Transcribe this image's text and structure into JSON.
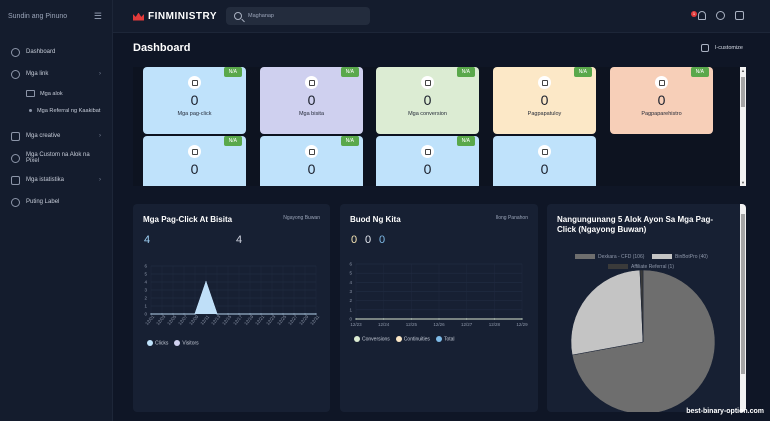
{
  "sidebar": {
    "user": "Sundin ang Pinuno",
    "items": [
      {
        "label": "Dashboard"
      },
      {
        "label": "Mga link"
      },
      {
        "label": "Mga alok"
      },
      {
        "label": "Mga Referral ng Kaakibat"
      },
      {
        "label": "Mga creative"
      },
      {
        "label": "Mga Custom na Alok na Pixel"
      },
      {
        "label": "Mga istatistika"
      },
      {
        "label": "Puting Label"
      }
    ]
  },
  "header": {
    "brand": "FINMINISTRY",
    "search_placeholder": "Maghanap",
    "notification_count": "1"
  },
  "page": {
    "title": "Dashboard",
    "customize_label": "I-customize"
  },
  "stat_cards": [
    {
      "label": "Mga pag-click",
      "value": "0",
      "badge": "N/A",
      "color": "#bfe2fb"
    },
    {
      "label": "Mga bisita",
      "value": "0",
      "badge": "N/A",
      "color": "#cfd0ef"
    },
    {
      "label": "Mga conversion",
      "value": "0",
      "badge": "N/A",
      "color": "#dcecd3"
    },
    {
      "label": "Pagpapatuloy",
      "value": "0",
      "badge": "N/A",
      "color": "#fce8c7"
    },
    {
      "label": "Pagpaparehistro",
      "value": "0",
      "badge": "N/A",
      "color": "#f7cfb8"
    },
    {
      "label": "",
      "value": "0",
      "badge": "N/A",
      "color": "#bfe2fb"
    },
    {
      "label": "",
      "value": "0",
      "badge": "N/A",
      "color": "#bfe2fb"
    },
    {
      "label": "",
      "value": "0",
      "badge": "N/A",
      "color": "#bfe2fb"
    },
    {
      "label": "",
      "value": "0",
      "badge": "",
      "color": "#bfe2fb"
    }
  ],
  "clicks_panel": {
    "title": "Mga Pag-Click At Bisita",
    "period": "Ngayong Buwan",
    "clicks_total": "4",
    "visitors_total": "4",
    "legend": [
      "Clicks",
      "Visitors"
    ]
  },
  "income_panel": {
    "title": "Buod Ng Kita",
    "period": "Ilong Panahon",
    "totals": [
      "0",
      "0",
      "0"
    ],
    "legend": [
      "Conversions",
      "Continuities",
      "Total"
    ]
  },
  "top_offers_panel": {
    "title": "Nangungunang 5 Alok Ayon Sa Mga Pag-Click (Ngayong Buwan)",
    "legend": [
      "Dexkara - CFD (106)",
      "BinBotPro (40)",
      "Affiliate Referral (1)"
    ]
  },
  "watermark": "best-binary-option.com",
  "chart_data": [
    {
      "type": "line",
      "title": "Mga Pag-Click At Bisita",
      "x": [
        "12/01",
        "12/03",
        "12/05",
        "12/07",
        "12/09",
        "12/11",
        "12/13",
        "12/15",
        "12/17",
        "12/19",
        "12/21",
        "12/23",
        "12/25",
        "12/27",
        "12/29",
        "12/31"
      ],
      "ylim": [
        0,
        6
      ],
      "yticks": [
        "0",
        "1",
        "2",
        "3",
        "4",
        "5",
        "6"
      ],
      "series": [
        {
          "name": "Clicks",
          "values": [
            0,
            0,
            0,
            0,
            0,
            4,
            0,
            0,
            0,
            0,
            0,
            0,
            0,
            0,
            0,
            0
          ],
          "color": "#bfe2fb"
        },
        {
          "name": "Visitors",
          "values": [
            0,
            0,
            0,
            0,
            0,
            4,
            0,
            0,
            0,
            0,
            0,
            0,
            0,
            0,
            0,
            0
          ],
          "color": "#cfd0ef"
        }
      ]
    },
    {
      "type": "line",
      "title": "Buod Ng Kita",
      "x": [
        "12/23",
        "12/24",
        "12/25",
        "12/26",
        "12/27",
        "12/28",
        "12/29"
      ],
      "ylim": [
        0,
        6
      ],
      "yticks": [
        "0",
        "1",
        "2",
        "3",
        "4",
        "5",
        "6"
      ],
      "series": [
        {
          "name": "Conversions",
          "values": [
            0,
            0,
            0,
            0,
            0,
            0,
            0
          ],
          "color": "#dcecd3"
        },
        {
          "name": "Continuities",
          "values": [
            0,
            0,
            0,
            0,
            0,
            0,
            0
          ],
          "color": "#fce8c7"
        },
        {
          "name": "Total",
          "values": [
            0,
            0,
            0,
            0,
            0,
            0,
            0
          ],
          "color": "#7fbbe8"
        }
      ]
    },
    {
      "type": "pie",
      "title": "Nangungunang 5 Alok Ayon Sa Mga Pag-Click (Ngayong Buwan)",
      "categories": [
        "Dexkara - CFD",
        "BinBotPro",
        "Affiliate Referral"
      ],
      "values": [
        106,
        40,
        1
      ],
      "colors": [
        "#6e6e6e",
        "#c4c4c4",
        "#3a3a3a"
      ]
    }
  ]
}
